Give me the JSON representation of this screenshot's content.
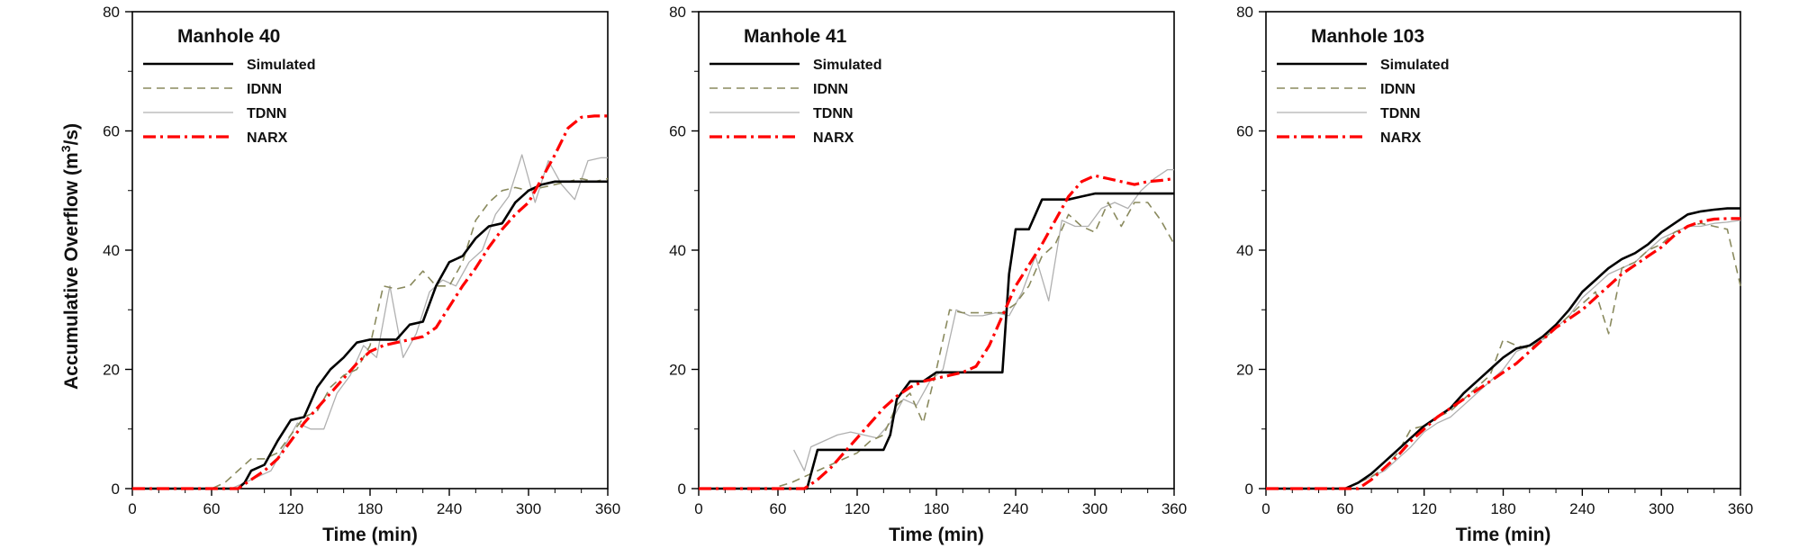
{
  "ylabel_main": "Accumulative Overflow (m",
  "ylabel_sup": "3",
  "ylabel_tail": "/s)",
  "chart_data": [
    {
      "type": "line",
      "title": "Manhole 40",
      "xlabel": "Time (min)",
      "ylabel": "Accumulative Overflow (m3/s)",
      "xlim": [
        0,
        360
      ],
      "ylim": [
        0,
        80
      ],
      "xticks": [
        0,
        60,
        120,
        180,
        240,
        300,
        360
      ],
      "yticks": [
        0,
        20,
        40,
        60,
        80
      ],
      "legend": "top-left",
      "series": [
        {
          "name": "Simulated",
          "color": "#000000",
          "style": "solid",
          "x": [
            0,
            70,
            80,
            85,
            90,
            95,
            100,
            110,
            120,
            130,
            140,
            150,
            160,
            170,
            180,
            190,
            200,
            210,
            220,
            230,
            240,
            250,
            260,
            270,
            280,
            290,
            300,
            310,
            320,
            330,
            340,
            360
          ],
          "y": [
            0,
            0,
            0,
            1,
            3,
            3.5,
            4,
            8,
            11.5,
            12,
            17,
            20,
            22,
            24.5,
            25,
            25,
            25,
            27.5,
            28,
            34,
            38,
            39,
            42,
            44,
            44.5,
            48,
            50,
            51,
            51.5,
            51.5,
            51.5,
            51.5
          ]
        },
        {
          "name": "IDNN",
          "color": "#8a8a5e",
          "style": "dashed",
          "x": [
            0,
            60,
            70,
            80,
            90,
            100,
            110,
            120,
            130,
            140,
            150,
            160,
            170,
            180,
            190,
            200,
            210,
            220,
            230,
            240,
            250,
            260,
            270,
            280,
            290,
            300,
            310,
            320,
            330,
            340,
            350,
            360
          ],
          "y": [
            0,
            0,
            1,
            3,
            5,
            5,
            6,
            9,
            12,
            13,
            17,
            19,
            20,
            24,
            34,
            33.5,
            34,
            36.5,
            34,
            34,
            38,
            45,
            48,
            50,
            50.5,
            50,
            50.5,
            51,
            51.5,
            52,
            51.5,
            52
          ]
        },
        {
          "name": "TDNN",
          "color": "#b0b0b0",
          "style": "solid",
          "x": [
            0,
            75,
            85,
            95,
            105,
            115,
            125,
            135,
            145,
            155,
            165,
            175,
            185,
            195,
            205,
            215,
            225,
            235,
            245,
            255,
            265,
            275,
            285,
            295,
            305,
            315,
            325,
            335,
            345,
            355,
            360
          ],
          "y": [
            0,
            0,
            1,
            2,
            3,
            7,
            11,
            10,
            10,
            16,
            19,
            24,
            22,
            34,
            22,
            26,
            33,
            35,
            34,
            38,
            40,
            46,
            49,
            56,
            48,
            55,
            51,
            48.5,
            55,
            55.5,
            55.5
          ]
        },
        {
          "name": "NARX",
          "color": "#ff0000",
          "style": "dashdot",
          "x": [
            0,
            80,
            90,
            100,
            110,
            120,
            130,
            140,
            150,
            160,
            170,
            180,
            190,
            200,
            210,
            220,
            230,
            240,
            250,
            260,
            270,
            280,
            290,
            300,
            310,
            320,
            330,
            340,
            350,
            360
          ],
          "y": [
            0,
            0,
            1.5,
            3,
            5,
            8,
            11,
            13.5,
            16,
            18.5,
            21,
            23,
            24,
            24.5,
            25,
            25.5,
            27,
            30.5,
            34,
            37,
            40.5,
            43.5,
            46,
            48,
            52,
            56,
            60.5,
            62.3,
            62.5,
            62.5
          ]
        }
      ]
    },
    {
      "type": "line",
      "title": "Manhole 41",
      "xlabel": "Time (min)",
      "ylabel": "",
      "xlim": [
        0,
        360
      ],
      "ylim": [
        0,
        80
      ],
      "xticks": [
        0,
        60,
        120,
        180,
        240,
        300,
        360
      ],
      "yticks": [
        0,
        20,
        40,
        60,
        80
      ],
      "legend": "top-left",
      "series": [
        {
          "name": "Simulated",
          "color": "#000000",
          "style": "solid",
          "x": [
            0,
            82,
            90,
            140,
            145,
            150,
            160,
            170,
            180,
            190,
            200,
            210,
            220,
            230,
            235,
            240,
            250,
            260,
            270,
            280,
            290,
            300,
            310,
            320,
            330,
            340,
            350,
            360
          ],
          "y": [
            0,
            0,
            6.5,
            6.5,
            9,
            15,
            18,
            18,
            19.5,
            19.5,
            19.5,
            19.5,
            19.5,
            19.5,
            36,
            43.5,
            43.5,
            48.5,
            48.5,
            48.5,
            49,
            49.5,
            49.5,
            49.5,
            49.5,
            49.5,
            49.5,
            49.5
          ]
        },
        {
          "name": "IDNN",
          "color": "#8a8a5e",
          "style": "dashed",
          "x": [
            0,
            55,
            70,
            80,
            90,
            100,
            110,
            120,
            130,
            140,
            150,
            160,
            170,
            180,
            190,
            200,
            210,
            220,
            230,
            240,
            250,
            260,
            270,
            280,
            290,
            300,
            310,
            320,
            330,
            340,
            350,
            360
          ],
          "y": [
            0,
            0,
            1,
            2,
            3,
            4,
            5,
            6,
            8,
            9,
            14,
            16,
            11,
            20,
            30,
            29.5,
            29.5,
            29.5,
            29.5,
            31,
            34,
            39,
            41,
            46,
            44,
            43,
            48,
            44,
            48,
            48,
            45,
            41
          ]
        },
        {
          "name": "TDNN",
          "color": "#b0b0b0",
          "style": "solid",
          "x": [
            72,
            80,
            85,
            95,
            105,
            115,
            125,
            135,
            145,
            155,
            165,
            175,
            185,
            195,
            205,
            215,
            225,
            235,
            245,
            255,
            265,
            275,
            285,
            295,
            305,
            315,
            325,
            335,
            345,
            355,
            360
          ],
          "y": [
            6.5,
            3,
            7,
            8,
            9,
            9.5,
            9,
            8.5,
            11,
            15,
            14,
            18,
            20,
            30,
            29,
            29,
            29.5,
            29,
            33,
            39,
            31.5,
            45,
            44,
            44,
            47,
            48,
            47,
            50,
            52,
            53.5,
            53.5
          ]
        },
        {
          "name": "NARX",
          "color": "#ff0000",
          "style": "dashdot",
          "x": [
            0,
            80,
            90,
            100,
            110,
            120,
            130,
            140,
            150,
            160,
            170,
            180,
            190,
            200,
            210,
            220,
            230,
            240,
            250,
            260,
            270,
            280,
            290,
            300,
            310,
            320,
            330,
            340,
            350,
            360
          ],
          "y": [
            0,
            0,
            1.5,
            3.5,
            6,
            8.5,
            11,
            13.5,
            15.5,
            17,
            18,
            18.5,
            19,
            19.5,
            20.5,
            24,
            29,
            34,
            37.5,
            41,
            45,
            49,
            51.5,
            52.5,
            52,
            51.5,
            51,
            51.5,
            51.7,
            52
          ]
        }
      ]
    },
    {
      "type": "line",
      "title": "Manhole 103",
      "xlabel": "Time (min)",
      "ylabel": "",
      "xlim": [
        0,
        360
      ],
      "ylim": [
        0,
        80
      ],
      "xticks": [
        0,
        60,
        120,
        180,
        240,
        300,
        360
      ],
      "yticks": [
        0,
        20,
        40,
        60,
        80
      ],
      "legend": "top-left",
      "series": [
        {
          "name": "Simulated",
          "color": "#000000",
          "style": "solid",
          "x": [
            0,
            60,
            70,
            80,
            90,
            100,
            110,
            120,
            130,
            140,
            150,
            160,
            170,
            180,
            190,
            200,
            210,
            220,
            230,
            240,
            250,
            260,
            270,
            280,
            290,
            300,
            310,
            320,
            330,
            340,
            350,
            360
          ],
          "y": [
            0,
            0,
            1,
            2.5,
            4.5,
            6.5,
            8.5,
            10.5,
            12,
            13.5,
            16,
            18,
            20,
            22,
            23.5,
            24,
            25.5,
            27.5,
            30,
            33,
            35,
            37,
            38.5,
            39.5,
            41,
            43,
            44.5,
            46,
            46.5,
            46.8,
            47,
            47
          ]
        },
        {
          "name": "IDNN",
          "color": "#8a8a5e",
          "style": "dashed",
          "x": [
            0,
            60,
            70,
            80,
            90,
            100,
            110,
            120,
            130,
            140,
            150,
            160,
            170,
            180,
            190,
            200,
            210,
            220,
            230,
            240,
            250,
            260,
            270,
            280,
            290,
            300,
            310,
            320,
            330,
            340,
            350,
            360
          ],
          "y": [
            0,
            0,
            1,
            2,
            3.5,
            6,
            10,
            10.5,
            12,
            13,
            15,
            17,
            19,
            25,
            24,
            23.5,
            25,
            27,
            29,
            31,
            33,
            26,
            37,
            38,
            40,
            41,
            43,
            44,
            44.5,
            44,
            43.5,
            34
          ]
        },
        {
          "name": "TDNN",
          "color": "#b0b0b0",
          "style": "solid",
          "x": [
            60,
            70,
            80,
            90,
            100,
            110,
            120,
            130,
            140,
            150,
            160,
            170,
            180,
            190,
            200,
            210,
            220,
            230,
            240,
            250,
            260,
            270,
            280,
            290,
            300,
            310,
            320,
            330,
            340,
            350,
            360
          ],
          "y": [
            0,
            1,
            2,
            3,
            5,
            7,
            9.5,
            11,
            12,
            14,
            16,
            18,
            20,
            23,
            24,
            25,
            27,
            29,
            32,
            34,
            36,
            37,
            38,
            40,
            42,
            43,
            44,
            44,
            44.5,
            44.7,
            45
          ]
        },
        {
          "name": "NARX",
          "color": "#ff0000",
          "style": "dashdot",
          "x": [
            0,
            70,
            80,
            90,
            100,
            110,
            120,
            130,
            140,
            150,
            160,
            170,
            180,
            190,
            200,
            210,
            220,
            230,
            240,
            250,
            260,
            270,
            280,
            290,
            300,
            310,
            320,
            330,
            340,
            350,
            360
          ],
          "y": [
            0,
            0,
            1.5,
            3.5,
            5.5,
            8,
            10,
            12,
            13.5,
            15,
            16.5,
            18,
            19.5,
            21,
            23,
            25,
            27,
            28.5,
            30,
            32,
            34,
            36,
            37.5,
            39,
            40.5,
            42.5,
            44,
            44.8,
            45.2,
            45.3,
            45.3
          ]
        }
      ]
    }
  ]
}
